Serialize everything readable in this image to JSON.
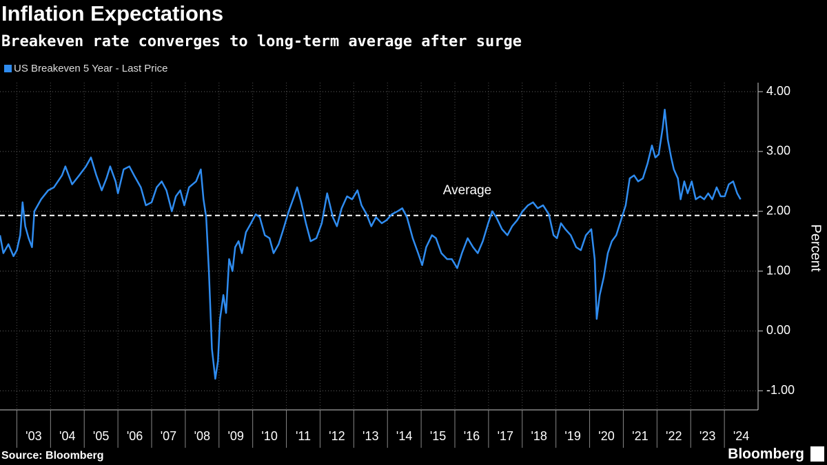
{
  "chart_data": {
    "type": "line",
    "title": "Inflation Expectations",
    "subtitle": "Breakeven rate converges to long-term average after surge",
    "y_label": "Percent",
    "source": "Source: Bloomberg",
    "brand": "Bloomberg",
    "average": {
      "value": 1.93,
      "label": "Average"
    },
    "xlim": [
      2002.5,
      2025
    ],
    "ylim": [
      -1.32,
      4.15
    ],
    "yticks": [
      {
        "value": 4,
        "label": "4.00"
      },
      {
        "value": 3,
        "label": "3.00"
      },
      {
        "value": 2,
        "label": "2.00"
      },
      {
        "value": 1,
        "label": "1.00"
      },
      {
        "value": 0,
        "label": "0.00"
      },
      {
        "value": -1,
        "label": "-1.00"
      }
    ],
    "xgrid": [
      2003,
      2004,
      2005,
      2006,
      2007,
      2008,
      2009,
      2010,
      2011,
      2012,
      2013,
      2014,
      2015,
      2016,
      2017,
      2018,
      2019,
      2020,
      2021,
      2022,
      2023,
      2024
    ],
    "xticks": [
      {
        "value": 2003.5,
        "label": "'03"
      },
      {
        "value": 2004.5,
        "label": "'04"
      },
      {
        "value": 2005.5,
        "label": "'05"
      },
      {
        "value": 2006.5,
        "label": "'06"
      },
      {
        "value": 2007.5,
        "label": "'07"
      },
      {
        "value": 2008.5,
        "label": "'08"
      },
      {
        "value": 2009.5,
        "label": "'09"
      },
      {
        "value": 2010.5,
        "label": "'10"
      },
      {
        "value": 2011.5,
        "label": "'11"
      },
      {
        "value": 2012.5,
        "label": "'12"
      },
      {
        "value": 2013.5,
        "label": "'13"
      },
      {
        "value": 2014.5,
        "label": "'14"
      },
      {
        "value": 2015.5,
        "label": "'15"
      },
      {
        "value": 2016.5,
        "label": "'16"
      },
      {
        "value": 2017.5,
        "label": "'17"
      },
      {
        "value": 2018.5,
        "label": "'18"
      },
      {
        "value": 2019.5,
        "label": "'19"
      },
      {
        "value": 2020.5,
        "label": "'20"
      },
      {
        "value": 2021.5,
        "label": "'21"
      },
      {
        "value": 2022.5,
        "label": "'22"
      },
      {
        "value": 2023.5,
        "label": "'23"
      },
      {
        "value": 2024.5,
        "label": "'24"
      }
    ],
    "grid": true,
    "series": [
      {
        "name": "US Breakeven 5 Year - Last Price",
        "color": "#2f8cf0",
        "x": [
          2002.5,
          2002.6,
          2002.75,
          2002.9,
          2003.0,
          2003.1,
          2003.17,
          2003.25,
          2003.35,
          2003.45,
          2003.52,
          2003.72,
          2003.93,
          2004.1,
          2004.34,
          2004.44,
          2004.64,
          2004.85,
          2005.05,
          2005.2,
          2005.36,
          2005.52,
          2005.66,
          2005.77,
          2005.93,
          2006.0,
          2006.17,
          2006.34,
          2006.48,
          2006.68,
          2006.83,
          2007.0,
          2007.15,
          2007.3,
          2007.44,
          2007.6,
          2007.72,
          2007.85,
          2007.97,
          2008.11,
          2008.32,
          2008.46,
          2008.54,
          2008.62,
          2008.7,
          2008.79,
          2008.89,
          2008.97,
          2009.03,
          2009.13,
          2009.21,
          2009.3,
          2009.4,
          2009.48,
          2009.58,
          2009.68,
          2009.8,
          2009.95,
          2010.09,
          2010.21,
          2010.36,
          2010.5,
          2010.62,
          2010.77,
          2010.91,
          2011.07,
          2011.23,
          2011.32,
          2011.44,
          2011.58,
          2011.72,
          2011.89,
          2012.05,
          2012.21,
          2012.38,
          2012.5,
          2012.64,
          2012.8,
          2012.95,
          2013.11,
          2013.23,
          2013.38,
          2013.52,
          2013.66,
          2013.83,
          2013.97,
          2014.13,
          2014.3,
          2014.44,
          2014.58,
          2014.75,
          2014.91,
          2015.03,
          2015.15,
          2015.32,
          2015.44,
          2015.6,
          2015.77,
          2015.91,
          2016.07,
          2016.21,
          2016.38,
          2016.54,
          2016.68,
          2016.83,
          2016.99,
          2017.11,
          2017.23,
          2017.4,
          2017.56,
          2017.7,
          2017.85,
          2018.01,
          2018.17,
          2018.32,
          2018.46,
          2018.62,
          2018.79,
          2018.93,
          2019.03,
          2019.15,
          2019.28,
          2019.44,
          2019.6,
          2019.74,
          2019.89,
          2020.05,
          2020.15,
          2020.21,
          2020.3,
          2020.42,
          2020.54,
          2020.66,
          2020.79,
          2020.93,
          2021.07,
          2021.19,
          2021.32,
          2021.44,
          2021.58,
          2021.72,
          2021.85,
          2021.95,
          2022.05,
          2022.17,
          2022.23,
          2022.32,
          2022.42,
          2022.5,
          2022.62,
          2022.7,
          2022.81,
          2022.91,
          2023.03,
          2023.15,
          2023.28,
          2023.4,
          2023.52,
          2023.64,
          2023.77,
          2023.89,
          2024.01,
          2024.13,
          2024.26,
          2024.38,
          2024.48
        ],
        "values": [
          1.6,
          1.3,
          1.45,
          1.25,
          1.35,
          1.6,
          2.15,
          1.75,
          1.55,
          1.4,
          2.0,
          2.2,
          2.35,
          2.4,
          2.6,
          2.75,
          2.45,
          2.6,
          2.75,
          2.9,
          2.6,
          2.35,
          2.55,
          2.75,
          2.5,
          2.3,
          2.7,
          2.75,
          2.6,
          2.4,
          2.1,
          2.15,
          2.4,
          2.5,
          2.35,
          2.0,
          2.25,
          2.35,
          2.1,
          2.4,
          2.5,
          2.7,
          2.2,
          1.9,
          1.0,
          -0.3,
          -0.8,
          -0.5,
          0.2,
          0.6,
          0.3,
          1.2,
          1.0,
          1.4,
          1.5,
          1.3,
          1.65,
          1.8,
          1.95,
          1.9,
          1.6,
          1.55,
          1.3,
          1.45,
          1.7,
          2.0,
          2.25,
          2.4,
          2.15,
          1.8,
          1.5,
          1.55,
          1.8,
          2.3,
          1.9,
          1.75,
          2.05,
          2.25,
          2.2,
          2.35,
          2.1,
          1.95,
          1.75,
          1.9,
          1.8,
          1.85,
          1.95,
          2.0,
          2.05,
          1.9,
          1.55,
          1.3,
          1.1,
          1.4,
          1.6,
          1.55,
          1.3,
          1.2,
          1.2,
          1.05,
          1.3,
          1.55,
          1.4,
          1.3,
          1.5,
          1.8,
          2.0,
          1.9,
          1.7,
          1.6,
          1.75,
          1.85,
          2.0,
          2.1,
          2.15,
          2.05,
          2.1,
          1.95,
          1.6,
          1.55,
          1.8,
          1.7,
          1.6,
          1.4,
          1.35,
          1.6,
          1.7,
          1.2,
          0.2,
          0.6,
          0.9,
          1.3,
          1.5,
          1.6,
          1.85,
          2.1,
          2.55,
          2.6,
          2.5,
          2.55,
          2.8,
          3.1,
          2.9,
          2.95,
          3.4,
          3.7,
          3.2,
          2.9,
          2.7,
          2.55,
          2.2,
          2.5,
          2.3,
          2.5,
          2.2,
          2.25,
          2.2,
          2.3,
          2.2,
          2.4,
          2.25,
          2.25,
          2.45,
          2.5,
          2.3,
          2.2
        ]
      }
    ]
  }
}
